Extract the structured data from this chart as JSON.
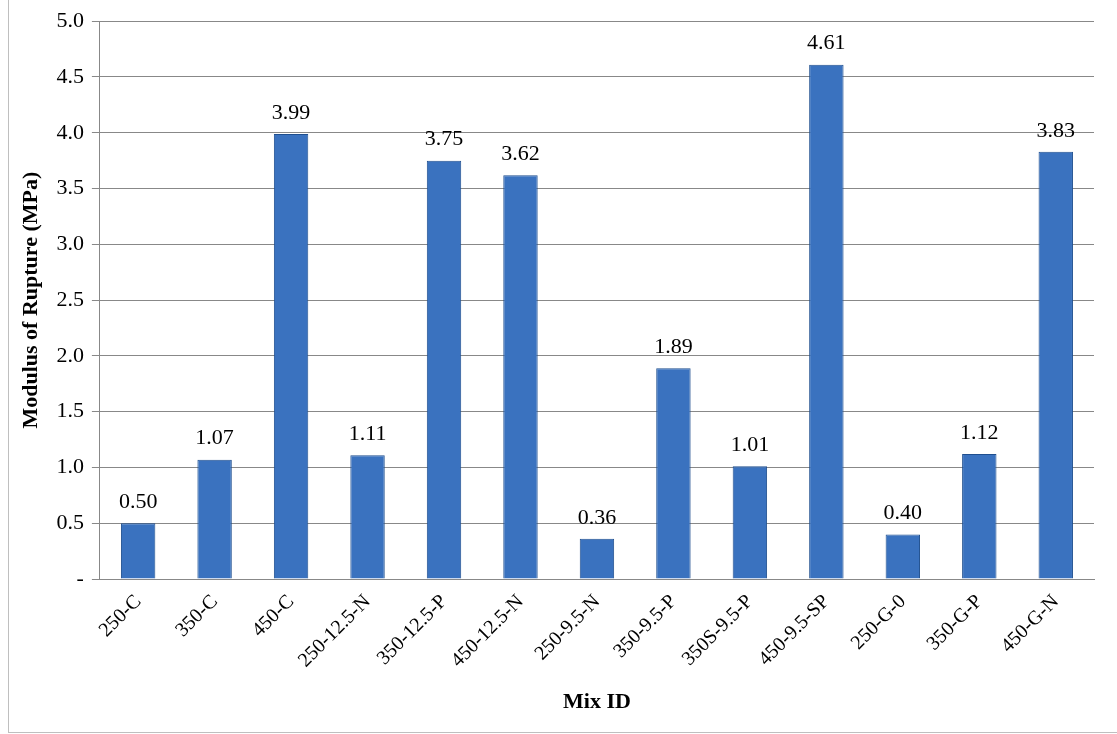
{
  "chart_data": {
    "type": "bar",
    "xlabel": "Mix ID",
    "ylabel": "Modulus of Rupture (MPa)",
    "categories": [
      "250-C",
      "350-C",
      "450-C",
      "250-12.5-N",
      "350-12.5-P",
      "450-12.5-N",
      "250-9.5-N",
      "350-9.5-P",
      "350S-9.5-P",
      "450-9.5-SP",
      "250-G-0",
      "350-G-P",
      "450-G-N"
    ],
    "values": [
      0.5,
      1.07,
      3.99,
      1.11,
      3.75,
      3.62,
      0.36,
      1.89,
      1.01,
      4.61,
      0.4,
      1.12,
      3.83
    ],
    "value_labels": [
      "0.50",
      "1.07",
      "3.99",
      "1.11",
      "3.75",
      "3.62",
      "0.36",
      "1.89",
      "1.01",
      "4.61",
      "0.40",
      "1.12",
      "3.83"
    ],
    "color": "#3a72bf",
    "ylim": [
      0,
      5
    ],
    "yticks": [
      {
        "value": 0,
        "label": "-"
      },
      {
        "value": 0.5,
        "label": "0.5"
      },
      {
        "value": 1,
        "label": "1.0"
      },
      {
        "value": 1.5,
        "label": "1.5"
      },
      {
        "value": 2,
        "label": "2.0"
      },
      {
        "value": 2.5,
        "label": "2.5"
      },
      {
        "value": 3,
        "label": "3.0"
      },
      {
        "value": 3.5,
        "label": "3.5"
      },
      {
        "value": 4,
        "label": "4.0"
      },
      {
        "value": 4.5,
        "label": "4.5"
      },
      {
        "value": 5,
        "label": "5.0"
      }
    ],
    "grid": "y",
    "legend": false
  }
}
